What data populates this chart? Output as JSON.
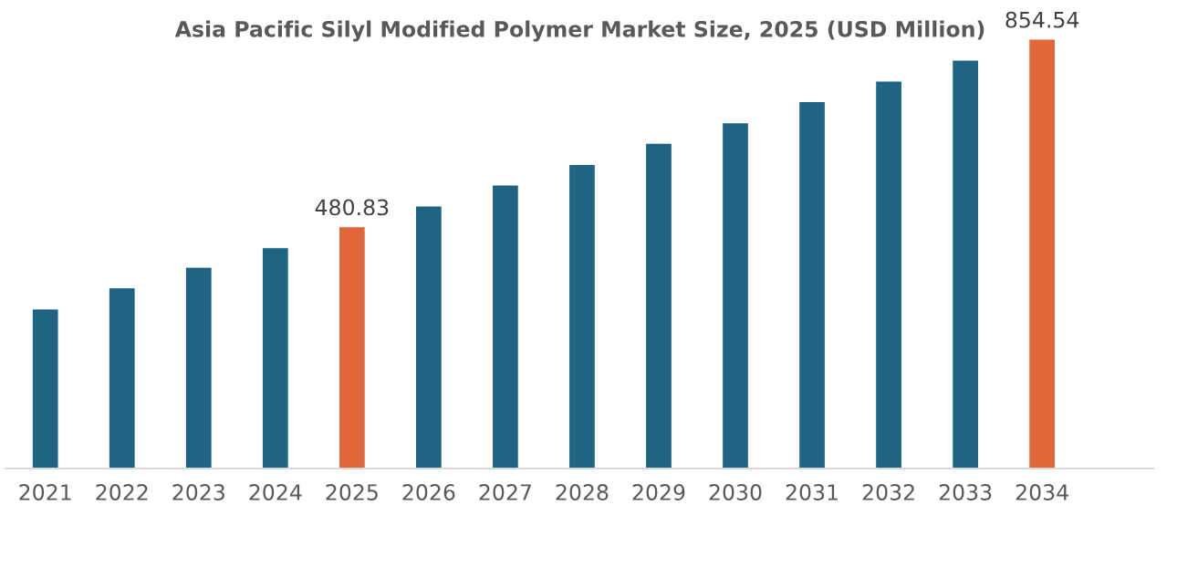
{
  "chart_data": {
    "type": "bar",
    "title": "Asia Pacific Silyl Modified Polymer Market Size, 2025 (USD Million)",
    "categories": [
      "2021",
      "2022",
      "2023",
      "2024",
      "2025",
      "2026",
      "2027",
      "2028",
      "2029",
      "2030",
      "2031",
      "2032",
      "2033",
      "2034"
    ],
    "values": [
      317,
      359,
      400,
      439,
      480.83,
      522,
      564,
      605,
      647,
      688,
      730,
      771,
      813,
      854.54
    ],
    "value_labels": [
      null,
      null,
      null,
      null,
      "480.83",
      null,
      null,
      null,
      null,
      null,
      null,
      null,
      null,
      "854.54"
    ],
    "colors": [
      "#1f6482",
      "#1f6482",
      "#1f6482",
      "#1f6482",
      "#e0673a",
      "#1f6482",
      "#1f6482",
      "#1f6482",
      "#1f6482",
      "#1f6482",
      "#1f6482",
      "#1f6482",
      "#1f6482",
      "#e0673a"
    ],
    "grid": false,
    "legend": false
  }
}
